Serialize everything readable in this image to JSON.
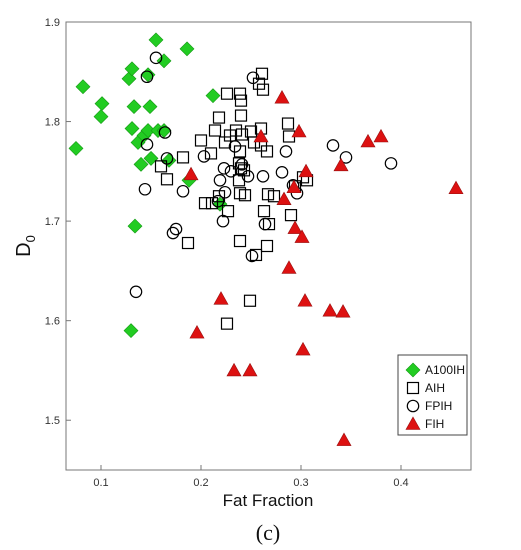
{
  "chart_data": {
    "type": "scatter",
    "xlabel": "Fat Fraction",
    "ylabel": "D",
    "ylabel_sub": "0",
    "panel_label": "(c)",
    "xlim": [
      0.065,
      0.47
    ],
    "ylim": [
      1.45,
      1.9
    ],
    "x_ticks": [
      0.1,
      0.2,
      0.3,
      0.4
    ],
    "y_ticks": [
      1.5,
      1.6,
      1.7,
      1.8,
      1.9
    ],
    "grid": false,
    "legend_position": "bottom-right",
    "series": [
      {
        "name": "A100IH",
        "marker": "diamond",
        "color": "#22cc22",
        "points": [
          [
            0.075,
            1.773
          ],
          [
            0.082,
            1.835
          ],
          [
            0.1,
            1.805
          ],
          [
            0.101,
            1.818
          ],
          [
            0.128,
            1.843
          ],
          [
            0.131,
            1.853
          ],
          [
            0.147,
            1.847
          ],
          [
            0.155,
            1.882
          ],
          [
            0.163,
            1.861
          ],
          [
            0.186,
            1.873
          ],
          [
            0.131,
            1.793
          ],
          [
            0.133,
            1.815
          ],
          [
            0.149,
            1.815
          ],
          [
            0.137,
            1.779
          ],
          [
            0.143,
            1.786
          ],
          [
            0.147,
            1.791
          ],
          [
            0.157,
            1.791
          ],
          [
            0.163,
            1.791
          ],
          [
            0.15,
            1.763
          ],
          [
            0.14,
            1.757
          ],
          [
            0.168,
            1.761
          ],
          [
            0.188,
            1.741
          ],
          [
            0.212,
            1.826
          ],
          [
            0.219,
            1.717
          ],
          [
            0.134,
            1.695
          ],
          [
            0.13,
            1.59
          ]
        ]
      },
      {
        "name": "AIH",
        "marker": "square",
        "color": "#000000",
        "points": [
          [
            0.16,
            1.755
          ],
          [
            0.166,
            1.742
          ],
          [
            0.182,
            1.764
          ],
          [
            0.2,
            1.781
          ],
          [
            0.21,
            1.768
          ],
          [
            0.214,
            1.791
          ],
          [
            0.218,
            1.804
          ],
          [
            0.224,
            1.779
          ],
          [
            0.226,
            1.828
          ],
          [
            0.229,
            1.786
          ],
          [
            0.235,
            1.791
          ],
          [
            0.239,
            1.828
          ],
          [
            0.24,
            1.821
          ],
          [
            0.24,
            1.806
          ],
          [
            0.241,
            1.787
          ],
          [
            0.239,
            1.77
          ],
          [
            0.238,
            1.758
          ],
          [
            0.238,
            1.741
          ],
          [
            0.239,
            1.728
          ],
          [
            0.24,
            1.753
          ],
          [
            0.243,
            1.751
          ],
          [
            0.244,
            1.726
          ],
          [
            0.25,
            1.79
          ],
          [
            0.253,
            1.779
          ],
          [
            0.258,
            1.838
          ],
          [
            0.261,
            1.848
          ],
          [
            0.262,
            1.832
          ],
          [
            0.26,
            1.793
          ],
          [
            0.26,
            1.776
          ],
          [
            0.266,
            1.77
          ],
          [
            0.267,
            1.727
          ],
          [
            0.263,
            1.71
          ],
          [
            0.266,
            1.675
          ],
          [
            0.268,
            1.697
          ],
          [
            0.273,
            1.725
          ],
          [
            0.287,
            1.798
          ],
          [
            0.288,
            1.785
          ],
          [
            0.29,
            1.706
          ],
          [
            0.294,
            1.735
          ],
          [
            0.302,
            1.744
          ],
          [
            0.306,
            1.741
          ],
          [
            0.227,
            1.71
          ],
          [
            0.218,
            1.725
          ],
          [
            0.211,
            1.718
          ],
          [
            0.204,
            1.718
          ],
          [
            0.187,
            1.678
          ],
          [
            0.239,
            1.68
          ],
          [
            0.255,
            1.666
          ],
          [
            0.249,
            1.62
          ],
          [
            0.226,
            1.597
          ]
        ]
      },
      {
        "name": "FPIH",
        "marker": "circle",
        "color": "#000000",
        "points": [
          [
            0.155,
            1.864
          ],
          [
            0.146,
            1.845
          ],
          [
            0.164,
            1.789
          ],
          [
            0.146,
            1.777
          ],
          [
            0.144,
            1.732
          ],
          [
            0.166,
            1.763
          ],
          [
            0.172,
            1.688
          ],
          [
            0.175,
            1.692
          ],
          [
            0.182,
            1.73
          ],
          [
            0.203,
            1.765
          ],
          [
            0.217,
            1.72
          ],
          [
            0.219,
            1.741
          ],
          [
            0.222,
            1.7
          ],
          [
            0.223,
            1.753
          ],
          [
            0.224,
            1.729
          ],
          [
            0.23,
            1.75
          ],
          [
            0.234,
            1.775
          ],
          [
            0.241,
            1.757
          ],
          [
            0.247,
            1.745
          ],
          [
            0.251,
            1.665
          ],
          [
            0.252,
            1.844
          ],
          [
            0.262,
            1.745
          ],
          [
            0.264,
            1.697
          ],
          [
            0.281,
            1.749
          ],
          [
            0.285,
            1.77
          ],
          [
            0.292,
            1.736
          ],
          [
            0.296,
            1.728
          ],
          [
            0.332,
            1.776
          ],
          [
            0.345,
            1.764
          ],
          [
            0.39,
            1.758
          ],
          [
            0.135,
            1.629
          ]
        ]
      },
      {
        "name": "FIH",
        "marker": "triangle",
        "color": "#dd1111",
        "points": [
          [
            0.19,
            1.747
          ],
          [
            0.196,
            1.588
          ],
          [
            0.22,
            1.622
          ],
          [
            0.233,
            1.55
          ],
          [
            0.249,
            1.55
          ],
          [
            0.26,
            1.785
          ],
          [
            0.281,
            1.824
          ],
          [
            0.283,
            1.722
          ],
          [
            0.288,
            1.653
          ],
          [
            0.293,
            1.734
          ],
          [
            0.294,
            1.693
          ],
          [
            0.298,
            1.79
          ],
          [
            0.301,
            1.684
          ],
          [
            0.302,
            1.571
          ],
          [
            0.304,
            1.62
          ],
          [
            0.305,
            1.75
          ],
          [
            0.329,
            1.61
          ],
          [
            0.34,
            1.756
          ],
          [
            0.342,
            1.609
          ],
          [
            0.343,
            1.48
          ],
          [
            0.367,
            1.78
          ],
          [
            0.38,
            1.785
          ],
          [
            0.455,
            1.733
          ]
        ]
      }
    ]
  }
}
